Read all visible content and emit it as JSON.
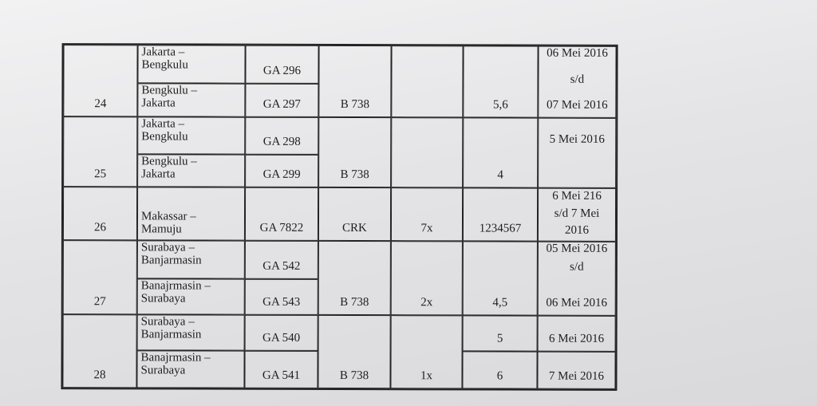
{
  "rows": [
    {
      "no": "24",
      "legs": [
        {
          "route1": "Jakarta –",
          "route2": "Bengkulu",
          "flight": "GA 296"
        },
        {
          "route1": "Bengkulu –",
          "route2": "Jakarta",
          "flight": "GA 297"
        }
      ],
      "aircraft": "B 738",
      "freq": "",
      "days": "5,6",
      "date1": "06 Mei 2016",
      "date2": "s/d",
      "date3": "07 Mei 2016"
    },
    {
      "no": "25",
      "legs": [
        {
          "route1": "Jakarta –",
          "route2": "Bengkulu",
          "flight": "GA 298"
        },
        {
          "route1": "Bengkulu –",
          "route2": "Jakarta",
          "flight": "GA 299"
        }
      ],
      "aircraft": "B 738",
      "freq": "",
      "days": "4",
      "date1": "5 Mei 2016"
    },
    {
      "no": "26",
      "legs": [
        {
          "route1": "Makassar –",
          "route2": "Mamuju",
          "flight": "GA 7822"
        }
      ],
      "aircraft": "CRK",
      "freq": "7x",
      "days": "1234567",
      "date1": "6 Mei 216",
      "date2": "s/d 7 Mei",
      "date3": "2016"
    },
    {
      "no": "27",
      "legs": [
        {
          "route1": "Surabaya –",
          "route2": "Banjarmasin",
          "flight": "GA 542"
        },
        {
          "route1": "Banajrmasin –",
          "route2": "Surabaya",
          "flight": "GA 543"
        }
      ],
      "aircraft": "B 738",
      "freq": "2x",
      "days": "4,5",
      "date1": "05 Mei 2016",
      "date2": "s/d",
      "date3": "06 Mei 2016"
    },
    {
      "no": "28",
      "legs": [
        {
          "route1": "Surabaya –",
          "route2": "Banjarmasin",
          "flight": "GA 540",
          "days": "5",
          "date": "6 Mei 2016"
        },
        {
          "route1": "Banajrmasin –",
          "route2": "Surabaya",
          "flight": "GA 541",
          "days": "6",
          "date": "7 Mei 2016"
        }
      ],
      "aircraft": "B 738",
      "freq": "1x"
    }
  ]
}
